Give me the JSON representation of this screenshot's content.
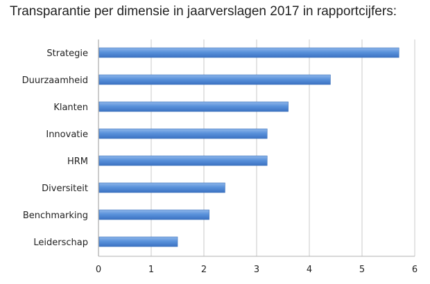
{
  "title": "Transparantie per dimensie in jaarverslagen 2017 in rapportcijfers:",
  "chart_data": {
    "type": "bar",
    "orientation": "horizontal",
    "categories": [
      "Strategie",
      "Duurzaamheid",
      "Klanten",
      "Innovatie",
      "HRM",
      "Diversiteit",
      "Benchmarking",
      "Leiderschap"
    ],
    "values": [
      5.7,
      4.4,
      3.6,
      3.2,
      3.2,
      2.4,
      2.1,
      1.5
    ],
    "xlim": [
      0,
      6
    ],
    "xticks": [
      0,
      1,
      2,
      3,
      4,
      5,
      6
    ],
    "grid": "vertical",
    "bar_color": "#4a86d4",
    "gridline_color": "#c8c8c8"
  }
}
